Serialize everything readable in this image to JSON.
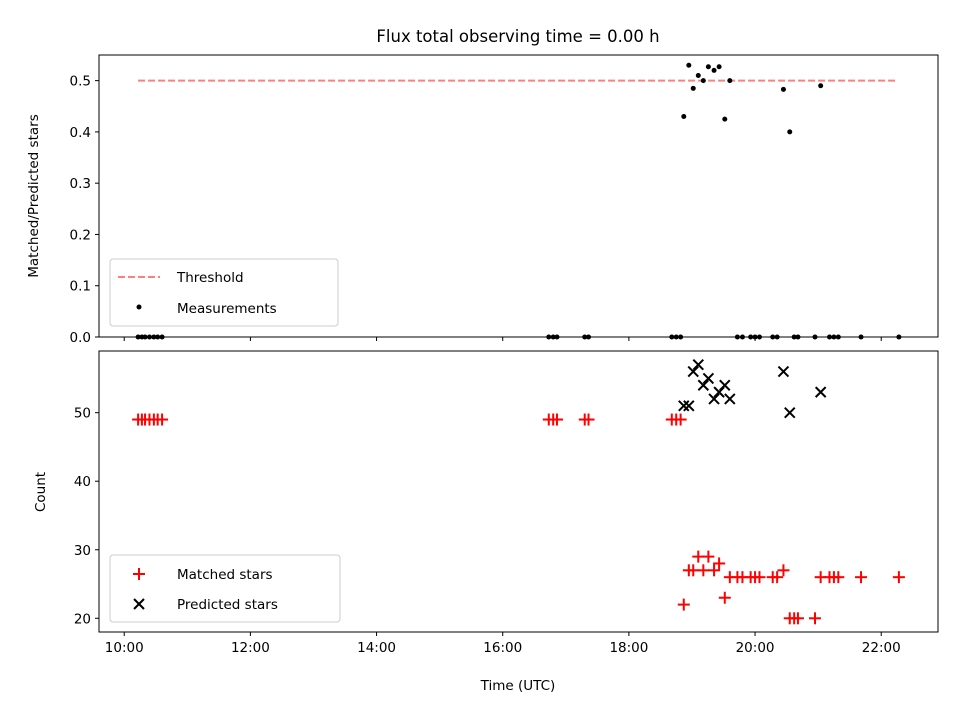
{
  "chart_data": [
    {
      "type": "scatter",
      "title": "Flux total observing time = 0.00 h",
      "xlabel": "",
      "ylabel": "Matched/Predicted stars",
      "xlim": [
        9.6,
        22.9
      ],
      "ylim": [
        0,
        0.55
      ],
      "yticks": [
        "0.0",
        "0.1",
        "0.2",
        "0.3",
        "0.4",
        "0.5"
      ],
      "ytick_values": [
        0,
        0.1,
        0.2,
        0.3,
        0.4,
        0.5
      ],
      "legend_position": "lower-left",
      "threshold": {
        "name": "Threshold",
        "y": 0.5,
        "x_range": [
          10.22,
          22.22
        ],
        "color": "#ff7f7f",
        "style": "dashed"
      },
      "series": [
        {
          "name": "Measurements",
          "marker": "dot",
          "color": "#000000",
          "points": [
            [
              10.22,
              0
            ],
            [
              10.28,
              0
            ],
            [
              10.33,
              0
            ],
            [
              10.4,
              0
            ],
            [
              10.47,
              0
            ],
            [
              10.53,
              0
            ],
            [
              10.6,
              0
            ],
            [
              16.73,
              0
            ],
            [
              16.8,
              0
            ],
            [
              16.86,
              0
            ],
            [
              17.3,
              0
            ],
            [
              17.36,
              0
            ],
            [
              18.68,
              0
            ],
            [
              18.75,
              0
            ],
            [
              18.82,
              0
            ],
            [
              18.87,
              0.43
            ],
            [
              18.95,
              0.53
            ],
            [
              19.02,
              0.485
            ],
            [
              19.1,
              0.51
            ],
            [
              19.18,
              0.5
            ],
            [
              19.26,
              0.527
            ],
            [
              19.35,
              0.52
            ],
            [
              19.43,
              0.527
            ],
            [
              19.52,
              0.425
            ],
            [
              19.6,
              0.5
            ],
            [
              19.72,
              0
            ],
            [
              19.8,
              0
            ],
            [
              19.93,
              0
            ],
            [
              20.0,
              0
            ],
            [
              20.07,
              0
            ],
            [
              20.28,
              0
            ],
            [
              20.35,
              0
            ],
            [
              20.45,
              0.483
            ],
            [
              20.55,
              0.4
            ],
            [
              20.62,
              0
            ],
            [
              20.68,
              0
            ],
            [
              20.95,
              0
            ],
            [
              21.04,
              0.49
            ],
            [
              21.18,
              0
            ],
            [
              21.25,
              0
            ],
            [
              21.32,
              0
            ],
            [
              21.68,
              0
            ],
            [
              22.28,
              0
            ]
          ]
        }
      ]
    },
    {
      "type": "scatter",
      "title": "",
      "xlabel": "Time (UTC)",
      "ylabel": "Count",
      "xlim": [
        9.6,
        22.9
      ],
      "ylim": [
        18,
        59
      ],
      "xticks": [
        "10:00",
        "12:00",
        "14:00",
        "16:00",
        "18:00",
        "20:00",
        "22:00"
      ],
      "xtick_values": [
        10,
        12,
        14,
        16,
        18,
        20,
        22
      ],
      "yticks": [
        "20",
        "30",
        "40",
        "50"
      ],
      "ytick_values": [
        20,
        30,
        40,
        50
      ],
      "legend_position": "lower-left",
      "series": [
        {
          "name": "Matched stars",
          "marker": "plus",
          "color": "#ff0000",
          "points": [
            [
              10.22,
              49
            ],
            [
              10.28,
              49
            ],
            [
              10.33,
              49
            ],
            [
              10.4,
              49
            ],
            [
              10.47,
              49
            ],
            [
              10.53,
              49
            ],
            [
              10.6,
              49
            ],
            [
              16.73,
              49
            ],
            [
              16.8,
              49
            ],
            [
              16.86,
              49
            ],
            [
              17.3,
              49
            ],
            [
              17.36,
              49
            ],
            [
              18.68,
              49
            ],
            [
              18.75,
              49
            ],
            [
              18.82,
              49
            ],
            [
              18.87,
              22
            ],
            [
              18.95,
              27
            ],
            [
              19.02,
              27
            ],
            [
              19.1,
              29
            ],
            [
              19.18,
              27
            ],
            [
              19.26,
              29
            ],
            [
              19.35,
              27
            ],
            [
              19.43,
              28
            ],
            [
              19.52,
              23
            ],
            [
              19.6,
              26
            ],
            [
              19.72,
              26
            ],
            [
              19.8,
              26
            ],
            [
              19.93,
              26
            ],
            [
              20.0,
              26
            ],
            [
              20.07,
              26
            ],
            [
              20.28,
              26
            ],
            [
              20.35,
              26
            ],
            [
              20.45,
              27
            ],
            [
              20.55,
              20
            ],
            [
              20.62,
              20
            ],
            [
              20.68,
              20
            ],
            [
              20.95,
              20
            ],
            [
              21.04,
              26
            ],
            [
              21.18,
              26
            ],
            [
              21.25,
              26
            ],
            [
              21.32,
              26
            ],
            [
              21.68,
              26
            ],
            [
              22.28,
              26
            ]
          ]
        },
        {
          "name": "Predicted stars",
          "marker": "x",
          "color": "#000000",
          "points": [
            [
              18.87,
              51
            ],
            [
              18.95,
              51
            ],
            [
              19.02,
              56
            ],
            [
              19.1,
              57
            ],
            [
              19.18,
              54
            ],
            [
              19.26,
              55
            ],
            [
              19.35,
              52
            ],
            [
              19.43,
              53
            ],
            [
              19.52,
              54
            ],
            [
              19.6,
              52
            ],
            [
              20.45,
              56
            ],
            [
              20.55,
              50
            ],
            [
              21.04,
              53
            ]
          ]
        }
      ]
    }
  ]
}
